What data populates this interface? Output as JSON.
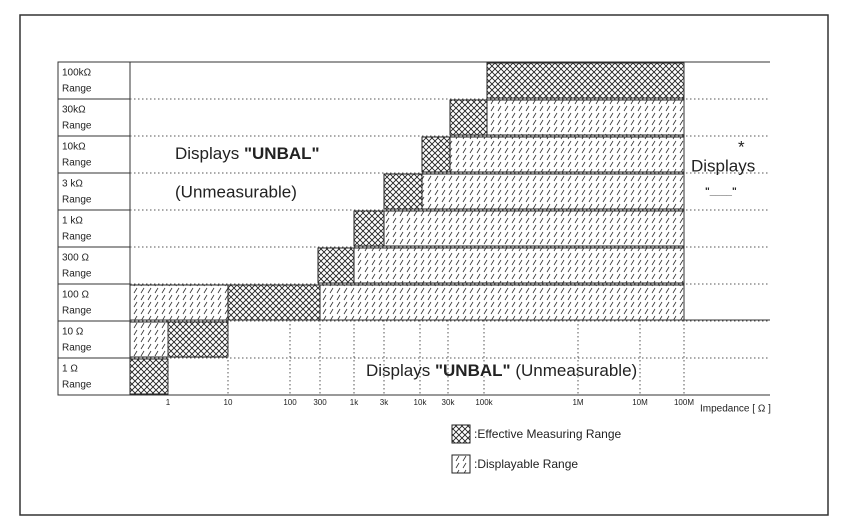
{
  "rows": [
    {
      "label": "100kΩ",
      "sub": "Range"
    },
    {
      "label": "30kΩ",
      "sub": "Range"
    },
    {
      "label": "10kΩ",
      "sub": "Range"
    },
    {
      "label": "3 kΩ",
      "sub": "Range"
    },
    {
      "label": "1 kΩ",
      "sub": "Range"
    },
    {
      "label": "300 Ω",
      "sub": "Range"
    },
    {
      "label": "100 Ω",
      "sub": "Range"
    },
    {
      "label": "10 Ω",
      "sub": "Range"
    },
    {
      "label": "1 Ω",
      "sub": "Range"
    }
  ],
  "x_axis": {
    "ticks": [
      "1",
      "10",
      "100",
      "300",
      "1k",
      "3k",
      "10k",
      "30k",
      "100k",
      "1M",
      "10M",
      "100M"
    ],
    "label": "Impedance [ Ω ]"
  },
  "annotations": {
    "upper_left": {
      "prefix": "Displays ",
      "bold": "\"UNBAL\"",
      "line2": "(Unmeasurable)"
    },
    "right": {
      "star": "*",
      "text": "Displays",
      "dash": "\"____\""
    },
    "bottom": {
      "prefix": "Displays ",
      "bold": "\"UNBAL\"",
      "suffix": " (Unmeasurable)"
    }
  },
  "legend": [
    {
      "label": ":Effective Measuring Range"
    },
    {
      "label": ":Displayable Range"
    }
  ]
}
